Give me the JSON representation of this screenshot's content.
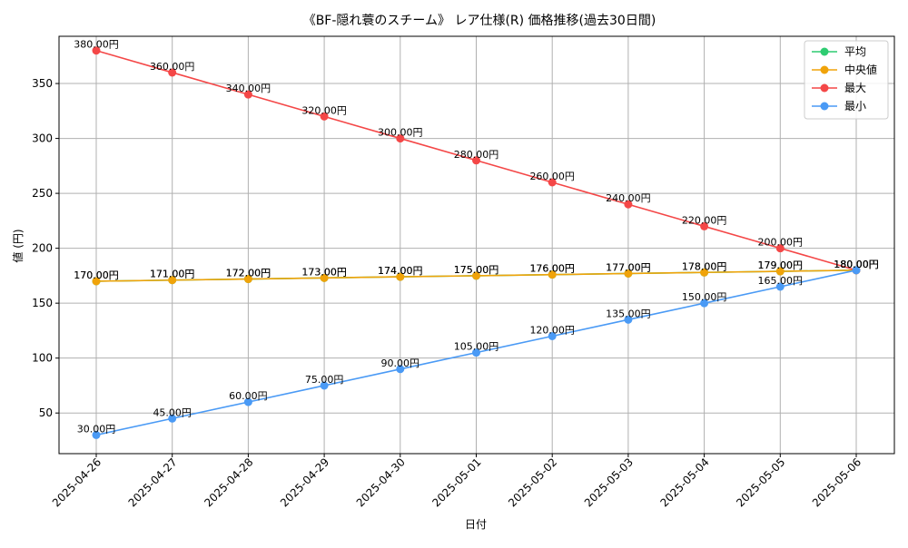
{
  "chart_data": {
    "type": "line",
    "title": "《BF-隠れ蓑のスチーム》 レア仕様(R) 価格推移(過去30日間)",
    "xlabel": "日付",
    "ylabel": "値 (円)",
    "x": [
      "2025-04-26",
      "2025-04-27",
      "2025-04-28",
      "2025-04-29",
      "2025-04-30",
      "2025-05-01",
      "2025-05-02",
      "2025-05-03",
      "2025-05-04",
      "2025-05-05",
      "2025-05-06"
    ],
    "ylim": [
      13,
      393
    ],
    "yticks": [
      50,
      100,
      150,
      200,
      250,
      300,
      350
    ],
    "grid": true,
    "legend_position": "top-right",
    "label_suffix": "円",
    "series": [
      {
        "name": "平均",
        "color": "#2ecc71",
        "values": [
          170,
          171,
          172,
          173,
          174,
          175,
          176,
          177,
          178,
          179,
          180
        ]
      },
      {
        "name": "中央値",
        "color": "#f0a30a",
        "values": [
          170,
          171,
          172,
          173,
          174,
          175,
          176,
          177,
          178,
          179,
          180
        ]
      },
      {
        "name": "最大",
        "color": "#f44747",
        "values": [
          380,
          360,
          340,
          320,
          300,
          280,
          260,
          240,
          220,
          200,
          180
        ]
      },
      {
        "name": "最小",
        "color": "#4a9af5",
        "values": [
          30,
          45,
          60,
          75,
          90,
          105,
          120,
          135,
          150,
          165,
          180
        ]
      }
    ]
  }
}
